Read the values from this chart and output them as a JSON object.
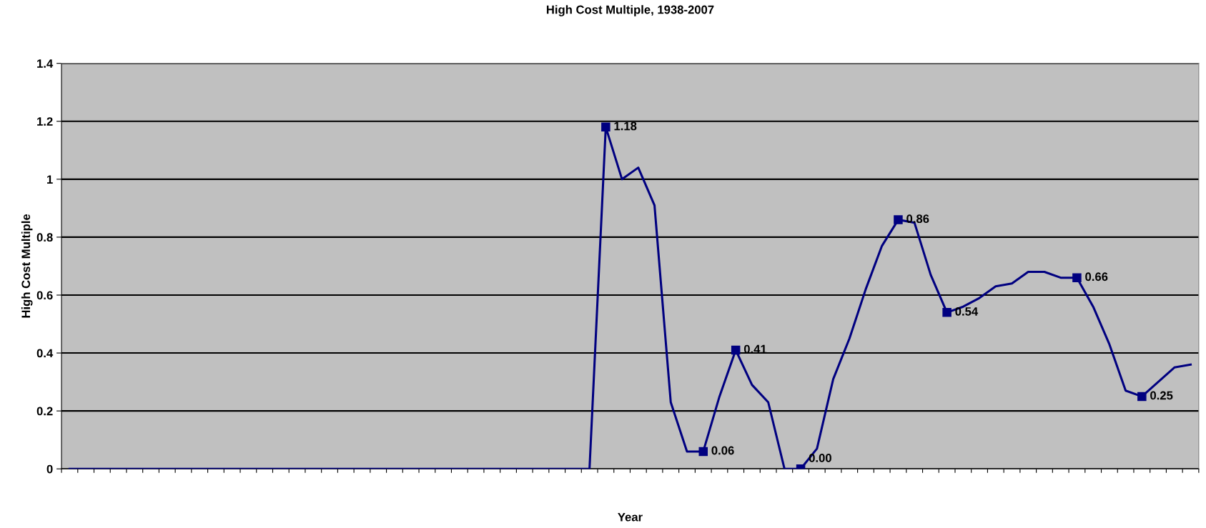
{
  "chart_data": {
    "type": "line",
    "title": "High Cost Multiple, 1938-2007",
    "xlabel": "Year",
    "ylabel": "High Cost Multiple",
    "categories": [
      null,
      null,
      null,
      null,
      null,
      null,
      null,
      null,
      null,
      null,
      null,
      null,
      null,
      null,
      null,
      null,
      null,
      null,
      null,
      null,
      null,
      null,
      null,
      null,
      null,
      null,
      null,
      null,
      null,
      null,
      null,
      null,
      null,
      null,
      null,
      null,
      null,
      null,
      null,
      null,
      null,
      null,
      null,
      null,
      null,
      null,
      null,
      null,
      null,
      null,
      null,
      null,
      null,
      null,
      null,
      null,
      null,
      null,
      null,
      null,
      null,
      null,
      null,
      null,
      null,
      null,
      null,
      null,
      null,
      null
    ],
    "series": [
      {
        "color": "#000080",
        "values": [
          0,
          0,
          0,
          0,
          0,
          0,
          0,
          0,
          0,
          0,
          0,
          0,
          0,
          0,
          0,
          0,
          0,
          0,
          0,
          0,
          0,
          0,
          0,
          0,
          0,
          0,
          0,
          0,
          0,
          0,
          0,
          0,
          0,
          1.18,
          1.0,
          1.04,
          0.91,
          0.23,
          0.06,
          0.06,
          0.25,
          0.41,
          0.29,
          0.23,
          0.0,
          0.0,
          0.07,
          0.31,
          0.45,
          0.62,
          0.77,
          0.86,
          0.85,
          0.67,
          0.54,
          0.56,
          0.59,
          0.63,
          0.64,
          0.68,
          0.68,
          0.66,
          0.66,
          0.56,
          0.43,
          0.27,
          0.25,
          0.3,
          0.35,
          0.36
        ],
        "value_labels": [
          null,
          null,
          null,
          null,
          null,
          null,
          null,
          null,
          null,
          null,
          null,
          null,
          null,
          null,
          null,
          null,
          null,
          null,
          null,
          null,
          null,
          null,
          null,
          null,
          null,
          null,
          null,
          null,
          null,
          null,
          null,
          null,
          null,
          "1.18",
          null,
          null,
          null,
          null,
          null,
          "0.06",
          null,
          "0.41",
          null,
          null,
          null,
          "0.00",
          null,
          null,
          null,
          null,
          null,
          "0.86",
          null,
          null,
          "0.54",
          null,
          null,
          null,
          null,
          null,
          null,
          null,
          "0.66",
          null,
          null,
          null,
          "0.25",
          null,
          null,
          null
        ]
      }
    ],
    "ylim": [
      0,
      1.4
    ],
    "yticks": [
      {
        "value": 0,
        "label": "0"
      },
      0.2,
      0.4,
      0.6,
      0.8,
      {
        "value": 1,
        "label": "1"
      },
      1.2,
      1.4
    ],
    "grid": "y",
    "line_style": "solid",
    "legend": false,
    "tick_labels": "y"
  }
}
